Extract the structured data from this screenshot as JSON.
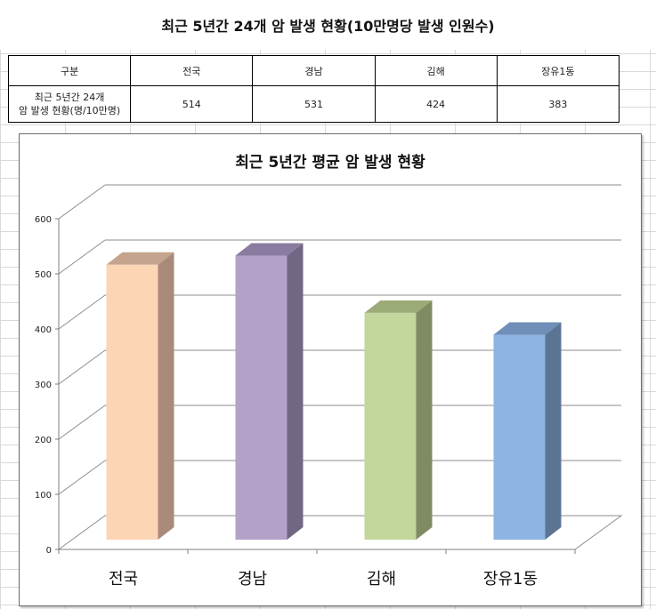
{
  "sheet": {
    "title": "최근 5년간 24개 암 발생 현황(10만명당 발생 인원수)"
  },
  "summary_table": {
    "header": [
      "구분",
      "전국",
      "경남",
      "김해",
      "장유1동"
    ],
    "row_label_line1": "최근 5년간 24개",
    "row_label_line2": "암 발생 현황(명/10만명)",
    "values": [
      "514",
      "531",
      "424",
      "383"
    ]
  },
  "chart_data": {
    "type": "bar",
    "title": "최근 5년간 평균 암 발생 현황",
    "categories": [
      "전국",
      "경남",
      "김해",
      "장유1동"
    ],
    "values": [
      514,
      531,
      424,
      383
    ],
    "ylim": [
      0,
      600
    ],
    "yticks": [
      0,
      100,
      200,
      300,
      400,
      500,
      600
    ],
    "grid": true,
    "three_d": true,
    "colors": [
      {
        "front": "#fcd5b5",
        "side": "#a9897a",
        "top": "#c4a48d"
      },
      {
        "front": "#b3a2c7",
        "side": "#716683",
        "top": "#8a7ca0"
      },
      {
        "front": "#c3d69b",
        "side": "#7f8c63",
        "top": "#9bab78"
      },
      {
        "front": "#8eb4e3",
        "side": "#5c7494",
        "top": "#6f8fb8"
      }
    ]
  }
}
